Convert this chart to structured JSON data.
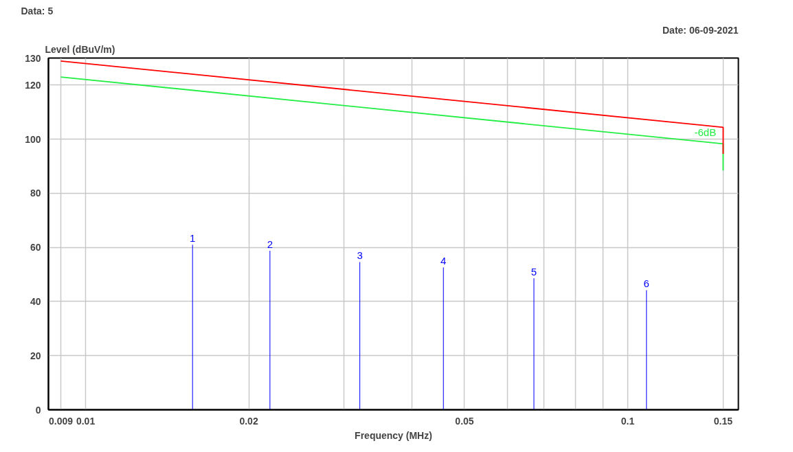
{
  "chart_data": {
    "type": "line",
    "xlabel": "Frequency (MHz)",
    "ylabel": "Level (dBuV/m)",
    "log": "x",
    "grid": true,
    "marker": "none",
    "line_style": "solid",
    "xlim": [
      0.00854,
      0.16
    ],
    "ylim": [
      0,
      130
    ],
    "xticks": [
      0.009,
      0.01,
      0.02,
      {
        "value": 0.03,
        "label": null
      },
      {
        "value": 0.04,
        "label": null
      },
      0.05,
      {
        "value": 0.06,
        "label": null
      },
      {
        "value": 0.07,
        "label": null
      },
      {
        "value": 0.08,
        "label": null
      },
      {
        "value": 0.09,
        "label": null
      },
      0.1,
      0.15
    ],
    "yticks": [
      0,
      20,
      40,
      60,
      80,
      100,
      120,
      130
    ],
    "series": [
      {
        "color": "#ff0000",
        "x": [
          0.009,
          0.15,
          0.15
        ],
        "values": [
          128.9,
          104.4,
          94.6
        ]
      },
      {
        "color": "#22ee44",
        "x": [
          0.009,
          0.15,
          0.15
        ],
        "values": [
          123.0,
          98.3,
          88.4
        ]
      },
      {
        "type": "bar",
        "color": "#0000ff",
        "x": [
          0.01575,
          0.02188,
          0.03205,
          0.04571,
          0.06714,
          0.1083
        ],
        "values": [
          61.0,
          58.8,
          54.6,
          52.6,
          48.6,
          44.2
        ]
      }
    ],
    "annotations": [
      "Data: 5",
      "Date: 06-09-2021",
      {
        "text": "1",
        "x": 0.01575,
        "y": 61.0
      },
      {
        "text": "2",
        "x": 0.02188,
        "y": 58.8
      },
      {
        "text": "3",
        "x": 0.03205,
        "y": 54.6
      },
      {
        "text": "4",
        "x": 0.04571,
        "y": 52.6
      },
      {
        "text": "5",
        "x": 0.06714,
        "y": 48.6
      },
      {
        "text": "6",
        "x": 0.1083,
        "y": 44.2
      },
      {
        "text": "-6dB",
        "x": 0.139,
        "y": 99.5
      }
    ]
  }
}
